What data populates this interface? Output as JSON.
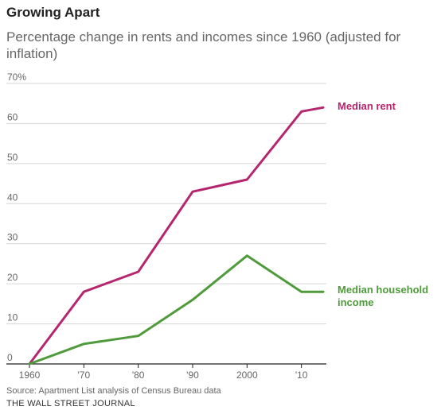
{
  "chart_data": {
    "type": "line",
    "title": "Growing Apart",
    "subtitle": "Percentage change in rents and incomes since 1960 (adjusted for inflation)",
    "x": [
      1960,
      1970,
      1980,
      1990,
      2000,
      2010,
      2014
    ],
    "x_tick_values": [
      1960,
      1970,
      1980,
      1990,
      2000,
      2010
    ],
    "x_tick_labels": [
      "1960",
      "'70",
      "'80",
      "'90",
      "2000",
      "'10"
    ],
    "y_tick_values": [
      0,
      10,
      20,
      30,
      40,
      50,
      60,
      70
    ],
    "y_tick_labels": [
      "0",
      "10",
      "20",
      "30",
      "40",
      "50",
      "60",
      "70%"
    ],
    "ylim": [
      0,
      70
    ],
    "xlim": [
      1960,
      2014
    ],
    "grid": "horizontal",
    "series": [
      {
        "name": "Median rent",
        "label_lines": [
          "Median rent"
        ],
        "color": "#b5266e",
        "values": [
          0,
          18,
          23,
          43,
          46,
          63,
          64
        ]
      },
      {
        "name": "Median household income",
        "label_lines": [
          "Median household",
          "income"
        ],
        "color": "#4f9b3b",
        "values": [
          0,
          5,
          7,
          16,
          27,
          18,
          18
        ]
      }
    ],
    "source": "Source: Apartment List analysis of Census Bureau data",
    "credit": "THE WALL STREET JOURNAL"
  }
}
